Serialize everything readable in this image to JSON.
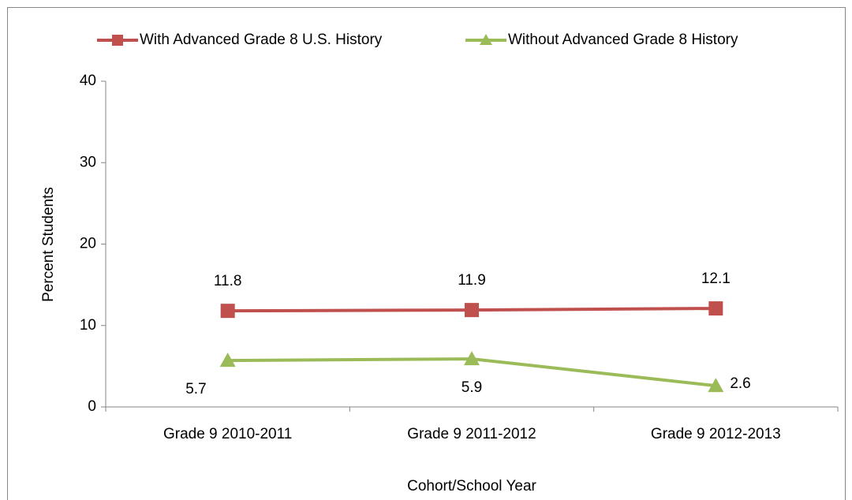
{
  "chart_data": {
    "type": "line",
    "x_label": "Cohort/School Year",
    "y_label": "Percent Students",
    "categories": [
      "Grade 9 2010-2011",
      "Grade 9 2011-2012",
      "Grade 9 2012-2013"
    ],
    "series": [
      {
        "name": "With Advanced Grade 8 U.S. History",
        "color": "#c0504d",
        "marker": "square",
        "values": [
          11.8,
          11.9,
          12.1
        ]
      },
      {
        "name": "Without Advanced Grade 8 History",
        "color": "#9bbb59",
        "marker": "triangle",
        "values": [
          5.7,
          5.9,
          2.6
        ]
      }
    ],
    "ylim": [
      0,
      40
    ],
    "yticks": [
      0,
      10,
      20,
      30,
      40
    ],
    "grid": false
  }
}
